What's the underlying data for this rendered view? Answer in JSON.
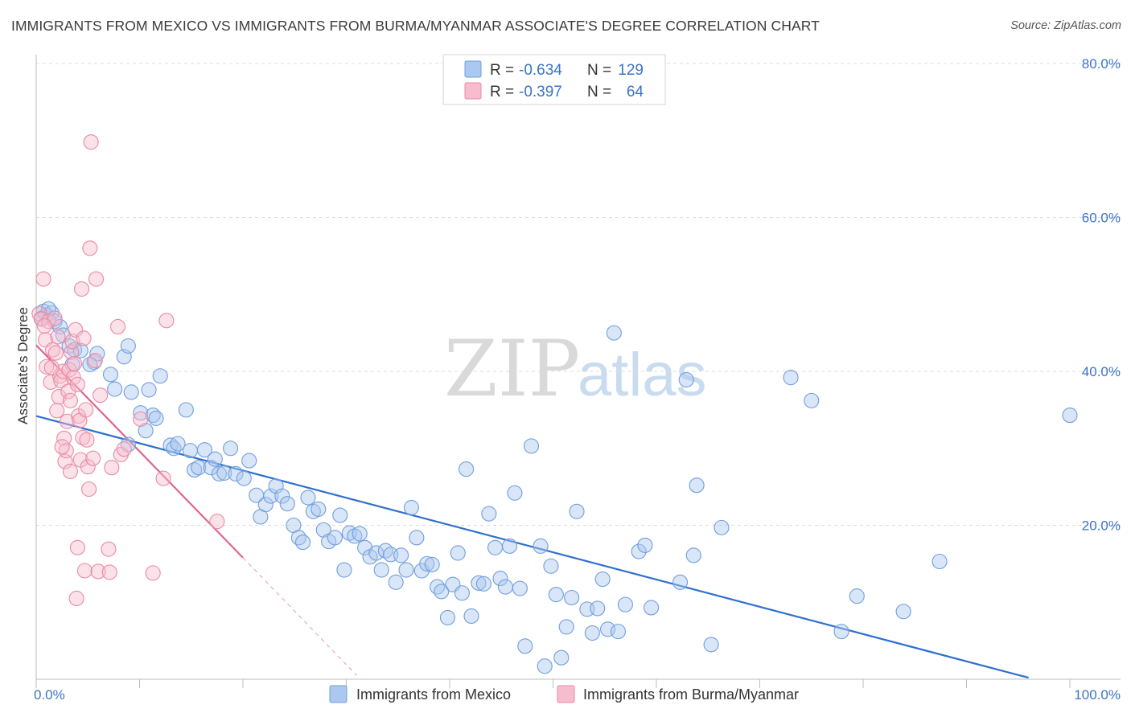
{
  "header": {
    "title": "IMMIGRANTS FROM MEXICO VS IMMIGRANTS FROM BURMA/MYANMAR ASSOCIATE'S DEGREE CORRELATION CHART",
    "source": "Source: ZipAtlas.com"
  },
  "watermark": {
    "zip": "ZIP",
    "atlas": "atlas"
  },
  "legend_top": [
    {
      "r_label": "R =",
      "r_value": "-0.634",
      "n_label": "N =",
      "n_value": "129",
      "color": "#aac8f0",
      "stroke": "#6f9edc"
    },
    {
      "r_label": "R =",
      "r_value": "-0.397",
      "n_label": "N =",
      "n_value": "64",
      "color": "#f7bccd",
      "stroke": "#e88aa6"
    }
  ],
  "legend_bottom": [
    {
      "label": "Immigrants from Mexico",
      "color": "#aac8f0",
      "stroke": "#6f9edc"
    },
    {
      "label": "Immigrants from Burma/Myanmar",
      "color": "#f7bccd",
      "stroke": "#e88aa6"
    }
  ],
  "chart_data": {
    "type": "scatter",
    "title": "IMMIGRANTS FROM MEXICO VS IMMIGRANTS FROM BURMA/MYANMAR ASSOCIATE'S DEGREE CORRELATION CHART",
    "xlabel": "",
    "ylabel": "Associate's Degree",
    "xlim": [
      0,
      100
    ],
    "ylim": [
      0,
      80
    ],
    "y_ticks": [
      "20.0%",
      "40.0%",
      "60.0%",
      "80.0%"
    ],
    "x_ticks": [
      "0.0%",
      "100.0%"
    ],
    "grid": "horizontal dashed",
    "legend_position": "top-center",
    "series": [
      {
        "name": "Immigrants from Mexico",
        "color": "#6f9edc",
        "trend": {
          "x": [
            0,
            96
          ],
          "y": [
            34.2,
            0.2
          ],
          "color": "#2f6fcf"
        },
        "points": [
          [
            0.7,
            47.8
          ],
          [
            1.0,
            47.3
          ],
          [
            1.5,
            47.6
          ],
          [
            1.8,
            46.5
          ],
          [
            2.3,
            45.8
          ],
          [
            2.6,
            44.7
          ],
          [
            3.2,
            43.3
          ],
          [
            3.7,
            42.8
          ],
          [
            4.3,
            42.7
          ],
          [
            5.6,
            41.2
          ],
          [
            5.9,
            42.3
          ],
          [
            7.2,
            39.6
          ],
          [
            7.6,
            37.7
          ],
          [
            8.5,
            41.9
          ],
          [
            8.9,
            43.3
          ],
          [
            9.2,
            37.3
          ],
          [
            10.1,
            34.6
          ],
          [
            10.6,
            32.3
          ],
          [
            10.9,
            37.6
          ],
          [
            11.3,
            34.3
          ],
          [
            11.6,
            33.9
          ],
          [
            12.0,
            39.4
          ],
          [
            13.0,
            30.4
          ],
          [
            13.3,
            30.0
          ],
          [
            13.7,
            30.6
          ],
          [
            14.5,
            35.0
          ],
          [
            14.9,
            29.7
          ],
          [
            15.3,
            27.2
          ],
          [
            15.7,
            27.5
          ],
          [
            16.3,
            29.8
          ],
          [
            16.9,
            27.5
          ],
          [
            17.3,
            28.6
          ],
          [
            17.7,
            26.7
          ],
          [
            18.2,
            26.8
          ],
          [
            18.8,
            30.0
          ],
          [
            19.3,
            26.7
          ],
          [
            20.1,
            26.1
          ],
          [
            20.6,
            28.4
          ],
          [
            21.3,
            23.9
          ],
          [
            21.7,
            21.1
          ],
          [
            22.2,
            22.7
          ],
          [
            22.7,
            23.8
          ],
          [
            23.2,
            25.1
          ],
          [
            23.8,
            23.8
          ],
          [
            24.3,
            22.8
          ],
          [
            24.9,
            20.0
          ],
          [
            25.4,
            18.4
          ],
          [
            25.8,
            17.8
          ],
          [
            26.3,
            23.6
          ],
          [
            26.8,
            21.8
          ],
          [
            27.3,
            22.1
          ],
          [
            27.8,
            19.4
          ],
          [
            28.3,
            17.9
          ],
          [
            28.9,
            18.4
          ],
          [
            29.4,
            21.3
          ],
          [
            29.8,
            14.2
          ],
          [
            30.3,
            19.0
          ],
          [
            30.8,
            18.6
          ],
          [
            31.3,
            18.9
          ],
          [
            31.8,
            17.1
          ],
          [
            32.3,
            15.9
          ],
          [
            32.9,
            16.4
          ],
          [
            33.4,
            14.2
          ],
          [
            33.8,
            16.7
          ],
          [
            34.3,
            16.2
          ],
          [
            34.8,
            12.6
          ],
          [
            35.3,
            16.1
          ],
          [
            35.8,
            14.2
          ],
          [
            36.3,
            22.3
          ],
          [
            36.8,
            18.4
          ],
          [
            37.3,
            14.1
          ],
          [
            37.8,
            15.0
          ],
          [
            38.3,
            14.9
          ],
          [
            38.8,
            12.0
          ],
          [
            39.2,
            11.4
          ],
          [
            39.8,
            8.0
          ],
          [
            40.3,
            12.3
          ],
          [
            40.8,
            16.4
          ],
          [
            41.2,
            11.2
          ],
          [
            41.6,
            27.3
          ],
          [
            42.1,
            8.2
          ],
          [
            42.8,
            12.5
          ],
          [
            43.3,
            12.4
          ],
          [
            43.8,
            21.5
          ],
          [
            44.4,
            17.1
          ],
          [
            44.9,
            13.1
          ],
          [
            45.4,
            12.0
          ],
          [
            45.8,
            17.3
          ],
          [
            46.3,
            24.2
          ],
          [
            46.8,
            11.8
          ],
          [
            47.3,
            4.3
          ],
          [
            47.9,
            30.3
          ],
          [
            48.8,
            17.3
          ],
          [
            49.2,
            1.7
          ],
          [
            49.8,
            14.7
          ],
          [
            50.3,
            11.0
          ],
          [
            50.8,
            2.8
          ],
          [
            51.3,
            6.8
          ],
          [
            51.8,
            10.6
          ],
          [
            52.3,
            21.8
          ],
          [
            53.3,
            9.1
          ],
          [
            53.8,
            6.0
          ],
          [
            54.3,
            9.2
          ],
          [
            54.8,
            13.0
          ],
          [
            55.3,
            6.5
          ],
          [
            55.9,
            45.0
          ],
          [
            56.3,
            6.2
          ],
          [
            57.0,
            9.7
          ],
          [
            58.3,
            16.6
          ],
          [
            58.9,
            17.4
          ],
          [
            59.5,
            9.3
          ],
          [
            62.3,
            12.6
          ],
          [
            62.9,
            38.9
          ],
          [
            63.6,
            16.1
          ],
          [
            63.9,
            25.2
          ],
          [
            65.3,
            4.5
          ],
          [
            66.3,
            19.7
          ],
          [
            73.0,
            39.2
          ],
          [
            75.0,
            36.2
          ],
          [
            77.9,
            6.2
          ],
          [
            79.4,
            10.8
          ],
          [
            83.9,
            8.8
          ],
          [
            87.4,
            15.3
          ],
          [
            100.0,
            34.3
          ],
          [
            0.5,
            46.9
          ],
          [
            1.2,
            48.1
          ],
          [
            3.5,
            40.9
          ],
          [
            5.2,
            40.9
          ],
          [
            8.9,
            30.5
          ]
        ]
      },
      {
        "name": "Immigrants from Burma/Myanmar",
        "color": "#e88aa6",
        "trend": {
          "x": [
            0,
            20
          ],
          "y": [
            43.4,
            15.8
          ],
          "color": "#e0668f"
        },
        "trend_dashed": {
          "x": [
            20,
            31
          ],
          "y": [
            15.8,
            0.5
          ]
        },
        "points": [
          [
            0.3,
            47.5
          ],
          [
            0.5,
            46.8
          ],
          [
            0.7,
            52.0
          ],
          [
            0.9,
            44.1
          ],
          [
            1.0,
            40.6
          ],
          [
            1.2,
            46.5
          ],
          [
            1.4,
            38.6
          ],
          [
            1.6,
            42.8
          ],
          [
            1.9,
            42.4
          ],
          [
            2.0,
            34.9
          ],
          [
            2.2,
            36.7
          ],
          [
            2.3,
            39.4
          ],
          [
            2.4,
            38.8
          ],
          [
            2.6,
            40.0
          ],
          [
            2.7,
            31.3
          ],
          [
            2.8,
            28.3
          ],
          [
            2.9,
            29.7
          ],
          [
            3.0,
            33.5
          ],
          [
            3.1,
            37.4
          ],
          [
            3.2,
            40.2
          ],
          [
            3.3,
            36.2
          ],
          [
            3.4,
            42.5
          ],
          [
            3.5,
            43.9
          ],
          [
            3.6,
            39.2
          ],
          [
            3.7,
            41.0
          ],
          [
            3.8,
            45.4
          ],
          [
            3.9,
            10.5
          ],
          [
            4.0,
            17.1
          ],
          [
            4.1,
            34.2
          ],
          [
            4.2,
            33.6
          ],
          [
            4.3,
            28.5
          ],
          [
            4.4,
            50.7
          ],
          [
            4.5,
            31.4
          ],
          [
            4.6,
            44.3
          ],
          [
            4.7,
            14.1
          ],
          [
            4.8,
            35.0
          ],
          [
            4.9,
            31.1
          ],
          [
            5.0,
            27.6
          ],
          [
            5.1,
            24.7
          ],
          [
            5.2,
            56.0
          ],
          [
            5.3,
            69.8
          ],
          [
            5.5,
            28.7
          ],
          [
            5.7,
            41.4
          ],
          [
            5.8,
            52.0
          ],
          [
            6.0,
            14.0
          ],
          [
            6.2,
            36.9
          ],
          [
            7.0,
            16.9
          ],
          [
            7.1,
            13.9
          ],
          [
            7.3,
            27.5
          ],
          [
            7.9,
            45.8
          ],
          [
            8.2,
            29.2
          ],
          [
            8.5,
            29.9
          ],
          [
            10.1,
            33.8
          ],
          [
            11.3,
            13.8
          ],
          [
            12.3,
            26.1
          ],
          [
            12.6,
            46.6
          ],
          [
            17.5,
            20.5
          ],
          [
            1.8,
            46.9
          ],
          [
            2.1,
            44.5
          ],
          [
            0.8,
            45.9
          ],
          [
            1.5,
            40.5
          ],
          [
            2.5,
            30.2
          ],
          [
            3.3,
            27.0
          ],
          [
            4.0,
            38.3
          ]
        ]
      }
    ]
  }
}
